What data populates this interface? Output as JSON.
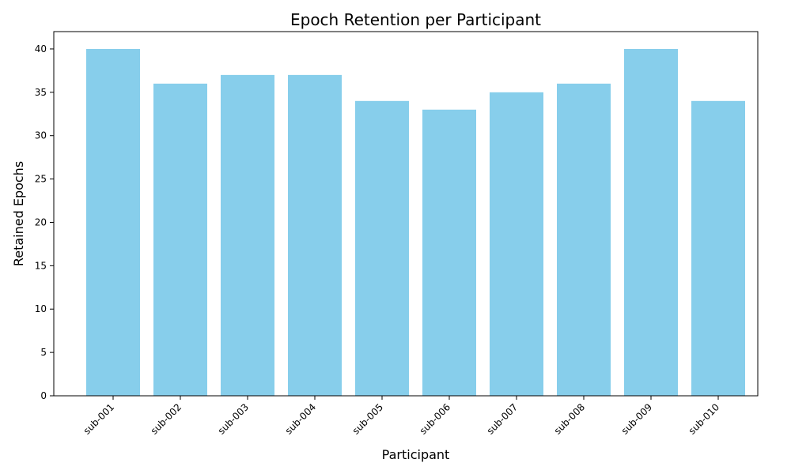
{
  "chart_data": {
    "type": "bar",
    "title": "Epoch Retention per Participant",
    "xlabel": "Participant",
    "ylabel": "Retained Epochs",
    "categories": [
      "sub-001",
      "sub-002",
      "sub-003",
      "sub-004",
      "sub-005",
      "sub-006",
      "sub-007",
      "sub-008",
      "sub-009",
      "sub-010"
    ],
    "values": [
      40,
      36,
      37,
      37,
      34,
      33,
      35,
      36,
      40,
      34
    ],
    "ylim": [
      0,
      42
    ],
    "yticks": [
      0,
      5,
      10,
      15,
      20,
      25,
      30,
      35,
      40
    ],
    "bar_color": "#87ceeb",
    "grid": false,
    "legend": "none"
  }
}
